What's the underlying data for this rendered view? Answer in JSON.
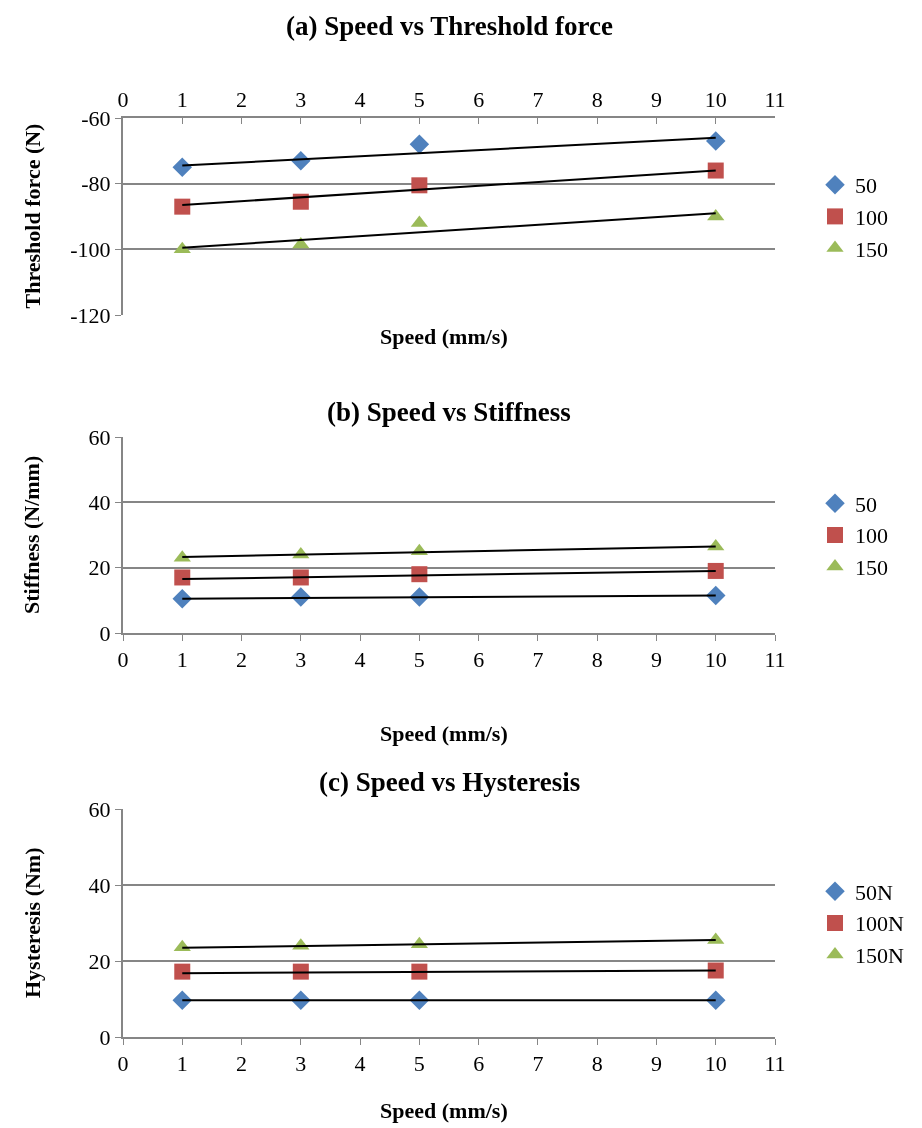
{
  "chart_data": [
    {
      "type": "scatter",
      "title": "(a) Speed vs Threshold force",
      "xlabel": "Speed (mm/s)",
      "ylabel": "Threshold force (N)",
      "xlim": [
        0,
        11
      ],
      "xticks": [
        0,
        1,
        2,
        3,
        4,
        5,
        6,
        7,
        8,
        9,
        10,
        11
      ],
      "ylim": [
        -120,
        -60
      ],
      "yticks": [
        -120,
        -100,
        -80,
        -60
      ],
      "grid": "y",
      "legend": "right",
      "series": [
        {
          "name": "50",
          "color": "#4f81bd",
          "marker": "diamond",
          "x": [
            1,
            3,
            5,
            10
          ],
          "values": [
            -75,
            -73,
            -68,
            -67
          ]
        },
        {
          "name": "100",
          "color": "#c0504d",
          "marker": "square",
          "x": [
            1,
            3,
            5,
            10
          ],
          "values": [
            -87,
            -85.5,
            -80.5,
            -76
          ]
        },
        {
          "name": "150",
          "color": "#9bbb59",
          "marker": "triangle",
          "x": [
            1,
            3,
            5,
            10
          ],
          "values": [
            -100,
            -98.5,
            -92,
            -90
          ]
        },
        {
          "type": "line",
          "color": "#000000",
          "marker": "none",
          "x": [
            1,
            10
          ],
          "values": [
            -74.5,
            -66
          ]
        },
        {
          "type": "line",
          "color": "#000000",
          "marker": "none",
          "x": [
            1,
            10
          ],
          "values": [
            -86.5,
            -76
          ]
        },
        {
          "type": "line",
          "color": "#000000",
          "marker": "none",
          "x": [
            1,
            10
          ],
          "values": [
            -99.5,
            -89
          ]
        }
      ]
    },
    {
      "type": "scatter",
      "title": "(b) Speed vs Stiffness",
      "xlabel": "Speed (mm/s)",
      "ylabel": "Stiffness (N/mm)",
      "xlim": [
        0,
        11
      ],
      "xticks": [
        0,
        1,
        2,
        3,
        4,
        5,
        6,
        7,
        8,
        9,
        10,
        11
      ],
      "ylim": [
        0,
        60
      ],
      "yticks": [
        0,
        20,
        40,
        60
      ],
      "grid": "y",
      "legend": "right",
      "series": [
        {
          "name": "50",
          "color": "#4f81bd",
          "marker": "diamond",
          "x": [
            1,
            3,
            5,
            10
          ],
          "values": [
            10.5,
            11,
            11,
            11.5
          ]
        },
        {
          "name": "100",
          "color": "#c0504d",
          "marker": "square",
          "x": [
            1,
            3,
            5,
            10
          ],
          "values": [
            17,
            17,
            18,
            19
          ]
        },
        {
          "name": "150",
          "color": "#9bbb59",
          "marker": "triangle",
          "x": [
            1,
            3,
            5,
            10
          ],
          "values": [
            23,
            24,
            25,
            26.5
          ]
        },
        {
          "type": "line",
          "color": "#000000",
          "marker": "none",
          "x": [
            1,
            10
          ],
          "values": [
            10.5,
            11.5
          ]
        },
        {
          "type": "line",
          "color": "#000000",
          "marker": "none",
          "x": [
            1,
            10
          ],
          "values": [
            16.5,
            19
          ]
        },
        {
          "type": "line",
          "color": "#000000",
          "marker": "none",
          "x": [
            1,
            10
          ],
          "values": [
            23.3,
            26.5
          ]
        }
      ]
    },
    {
      "type": "scatter",
      "title": "(c) Speed vs Hysteresis",
      "xlabel": "Speed (mm/s)",
      "ylabel": "Hysteresis (Nm)",
      "xlim": [
        0,
        11
      ],
      "xticks": [
        0,
        1,
        2,
        3,
        4,
        5,
        6,
        7,
        8,
        9,
        10,
        11
      ],
      "ylim": [
        0,
        60
      ],
      "yticks": [
        0,
        20,
        40,
        60
      ],
      "grid": "y",
      "legend": "right",
      "series": [
        {
          "name": "50N",
          "color": "#4f81bd",
          "marker": "diamond",
          "x": [
            1,
            3,
            5,
            10
          ],
          "values": [
            9.7,
            9.7,
            9.7,
            9.7
          ]
        },
        {
          "name": "100N",
          "color": "#c0504d",
          "marker": "square",
          "x": [
            1,
            3,
            5,
            10
          ],
          "values": [
            17.2,
            17.2,
            17.2,
            17.5
          ]
        },
        {
          "name": "150N",
          "color": "#9bbb59",
          "marker": "triangle",
          "x": [
            1,
            3,
            5,
            10
          ],
          "values": [
            23.6,
            24,
            24.4,
            25.5
          ]
        },
        {
          "type": "line",
          "color": "#000000",
          "marker": "none",
          "x": [
            1,
            10
          ],
          "values": [
            9.7,
            9.7
          ]
        },
        {
          "type": "line",
          "color": "#000000",
          "marker": "none",
          "x": [
            1,
            10
          ],
          "values": [
            16.8,
            17.5
          ]
        },
        {
          "type": "line",
          "color": "#000000",
          "marker": "none",
          "x": [
            1,
            10
          ],
          "values": [
            23.5,
            25.5
          ]
        }
      ]
    }
  ]
}
